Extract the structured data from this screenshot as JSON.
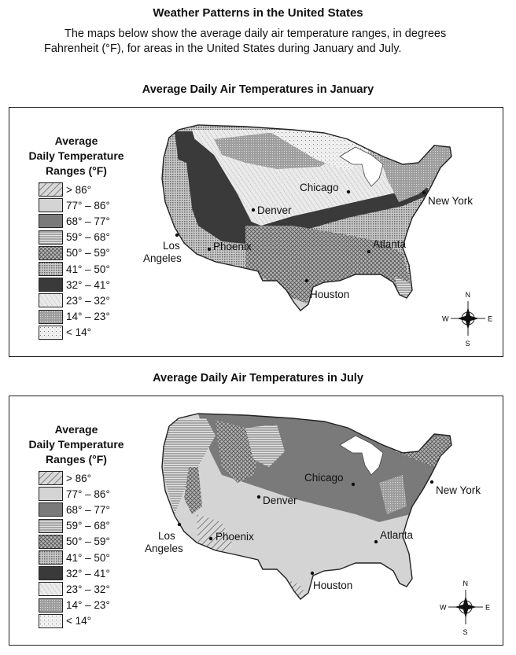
{
  "title": "Weather Patterns in the United States",
  "intro": "The maps below show the average daily air temperature ranges, in degrees Fahrenheit (°F), for areas in the United States during January and July.",
  "legend": {
    "title_line1": "Average",
    "title_line2": "Daily Temperature",
    "title_line3": "Ranges (°F)",
    "items": [
      {
        "label": "> 86°"
      },
      {
        "label": "77° – 86°"
      },
      {
        "label": "68° – 77°"
      },
      {
        "label": "59° – 68°"
      },
      {
        "label": "50° – 59°"
      },
      {
        "label": "41° – 50°"
      },
      {
        "label": "32° – 41°"
      },
      {
        "label": "23° – 32°"
      },
      {
        "label": "14° – 23°"
      },
      {
        "label": "< 14°"
      }
    ]
  },
  "maps": [
    {
      "heading": "Average Daily Air Temperatures in January",
      "cities": {
        "chicago": "Chicago",
        "denver": "Denver",
        "new_york": "New York",
        "los": "Los",
        "angeles": "Angeles",
        "phoenix": "Phoenix",
        "atlanta": "Atlanta",
        "houston": "Houston"
      }
    },
    {
      "heading": "Average Daily Air Temperatures in July",
      "cities": {
        "chicago": "Chicago",
        "denver": "Denver",
        "new_york": "New York",
        "los": "Los",
        "angeles": "Angeles",
        "phoenix": "Phoenix",
        "atlanta": "Atlanta",
        "houston": "Houston"
      }
    }
  ],
  "compass": {
    "n": "N",
    "s": "S",
    "e": "E",
    "w": "W"
  }
}
